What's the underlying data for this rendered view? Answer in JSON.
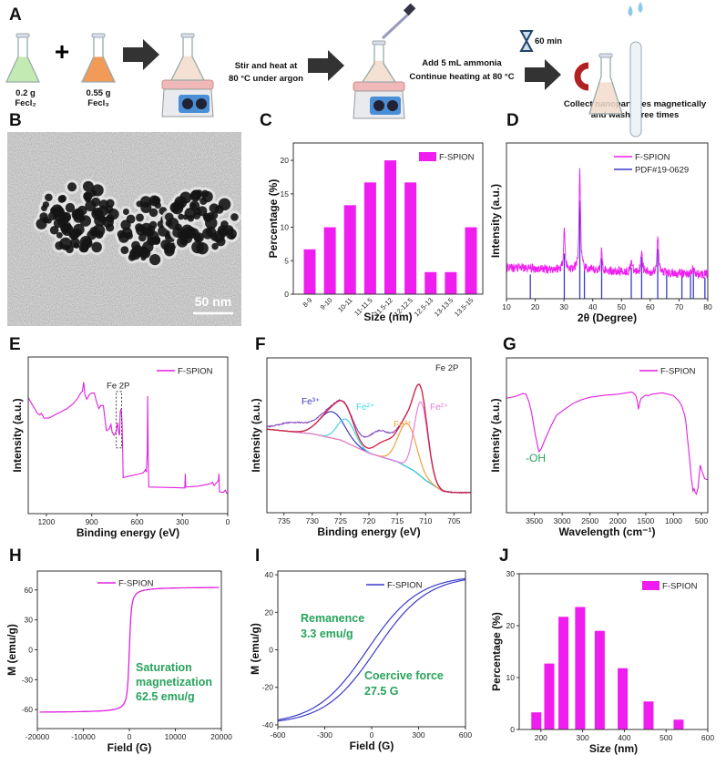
{
  "panel_labels": {
    "A": "A",
    "B": "B",
    "C": "C",
    "D": "D",
    "E": "E",
    "F": "F",
    "G": "G",
    "H": "H",
    "I": "I",
    "J": "J"
  },
  "scheme": {
    "reagent1_mass": "0.2 g",
    "reagent1_name": "Fecl₂",
    "plus": "+",
    "reagent2_mass": "0.55 g",
    "reagent2_name": "Fecl₃",
    "step1_line1": "Stir and heat at",
    "step1_line2": "80 °C under argon",
    "step2_line1": "Add 5 mL ammonia",
    "step2_line2": "Continue heating at 80 °C",
    "timer": "60 min",
    "step3_line1": "Collect nanoparticles magnetically",
    "step3_line2": "and wash three times"
  },
  "tem": {
    "scale_bar": "50 nm"
  },
  "colors": {
    "magenta": "#f01df0",
    "blue": "#3a3ac8",
    "annotation_green": "#27a35c"
  },
  "chart_data": [
    {
      "id": "C",
      "type": "bar",
      "categories": [
        "8-9",
        "9-10",
        "10-11",
        "11-11.5",
        "11.5-12",
        "12-12.5",
        "12.5-13",
        "13-13.5",
        "13.5-15"
      ],
      "values": [
        6.7,
        10,
        13.3,
        16.7,
        20,
        16.7,
        3.3,
        3.3,
        10
      ],
      "series_name": "F-SPION",
      "xlabel": "Size (nm)",
      "ylabel": "Percentage (%)",
      "ylim": [
        0,
        22.6
      ],
      "y_ticks": [
        0,
        5,
        10,
        15,
        20
      ],
      "legend": "top-right",
      "color": "#f01df0"
    },
    {
      "id": "D",
      "type": "line",
      "xlabel": "2θ (Degree)",
      "ylabel": "Intensity (a.u.)",
      "xlim": [
        10,
        80
      ],
      "ylim": [
        0,
        100
      ],
      "x_ticks": [
        10,
        20,
        30,
        40,
        50,
        60,
        70,
        80
      ],
      "legend": "top-right",
      "series": [
        {
          "name": "F-SPION",
          "color": "#f01df0",
          "background": [
            [
              10,
              20
            ],
            [
              80,
              15.5
            ]
          ],
          "peaks": [
            [
              30.1,
              45
            ],
            [
              35.5,
              83
            ],
            [
              43.1,
              31
            ],
            [
              53.4,
              25
            ],
            [
              57.0,
              32
            ],
            [
              62.6,
              42
            ],
            [
              74.8,
              20
            ]
          ]
        },
        {
          "name": "PDF#19-0629",
          "color": "#3a3ac8",
          "type": "stick",
          "peaks": [
            [
              18.3,
              15.5
            ],
            [
              30.1,
              29
            ],
            [
              35.5,
              63
            ],
            [
              37.1,
              18
            ],
            [
              43.1,
              26
            ],
            [
              53.4,
              20
            ],
            [
              57.0,
              27
            ],
            [
              62.6,
              32
            ],
            [
              65.7,
              15.5
            ],
            [
              71.0,
              14.5
            ],
            [
              74.0,
              17.5
            ],
            [
              75.0,
              20
            ],
            [
              79.0,
              13.6
            ]
          ]
        }
      ]
    },
    {
      "id": "E",
      "type": "line",
      "xlabel": "Binding energy (eV)",
      "ylabel": "Intensity (a.u.)",
      "xlim": [
        1320,
        0
      ],
      "ylim": [
        0,
        100
      ],
      "x_ticks": [
        1200,
        900,
        600,
        300,
        0
      ],
      "legend": "top-right",
      "annotation": "Fe 2P",
      "series": [
        {
          "name": "F-SPION",
          "color": "#e020e0",
          "points": [
            [
              1320,
              74
            ],
            [
              1290,
              69
            ],
            [
              1260,
              64
            ],
            [
              1244,
              63
            ],
            [
              1232,
              64
            ],
            [
              1215,
              61
            ],
            [
              1184,
              61
            ],
            [
              1144,
              63
            ],
            [
              1104,
              65
            ],
            [
              1064,
              67
            ],
            [
              1024,
              70
            ],
            [
              990,
              74
            ],
            [
              974,
              77
            ],
            [
              962,
              78
            ],
            [
              953,
              84
            ],
            [
              945,
              76
            ],
            [
              933,
              73
            ],
            [
              915,
              76
            ],
            [
              900,
              77
            ],
            [
              883,
              77
            ],
            [
              870,
              72
            ],
            [
              853,
              67
            ],
            [
              840,
              69
            ],
            [
              823,
              69
            ],
            [
              812,
              60
            ],
            [
              803,
              53
            ],
            [
              785,
              54
            ],
            [
              773,
              57
            ],
            [
              765,
              52
            ],
            [
              753,
              50
            ],
            [
              740,
              52
            ],
            [
              728,
              58
            ],
            [
              722,
              52
            ],
            [
              716,
              50
            ],
            [
              711,
              65
            ],
            [
              706,
              67
            ],
            [
              700,
              60
            ],
            [
              695,
              40
            ],
            [
              692,
              23
            ],
            [
              650,
              24
            ],
            [
              600,
              25
            ],
            [
              560,
              26
            ],
            [
              545,
              28
            ],
            [
              538,
              26.5
            ],
            [
              532,
              40
            ],
            [
              530,
              75
            ],
            [
              527,
              40
            ],
            [
              522,
              17
            ],
            [
              450,
              16.8
            ],
            [
              350,
              16.6
            ],
            [
              284,
              16.4
            ],
            [
              281,
              25.5
            ],
            [
              278,
              17
            ],
            [
              200,
              17.5
            ],
            [
              120,
              19
            ],
            [
              100,
              20
            ],
            [
              90,
              18
            ],
            [
              62,
              21
            ],
            [
              58,
              25.5
            ],
            [
              55,
              14
            ],
            [
              30,
              13.5
            ],
            [
              15,
              15
            ],
            [
              8,
              13
            ],
            [
              0,
              13
            ]
          ]
        }
      ]
    },
    {
      "id": "F",
      "type": "line",
      "xlabel": "Binding energy (eV)",
      "ylabel": "Intensity (a.u.)",
      "xlim": [
        738,
        702
      ],
      "ylim": [
        0,
        100
      ],
      "x_ticks": [
        735,
        730,
        725,
        720,
        715,
        710,
        705
      ],
      "title": "Fe 2P",
      "background": [
        [
          738,
          54
        ],
        [
          734,
          52.5
        ],
        [
          730,
          51
        ],
        [
          725,
          47
        ],
        [
          720,
          38.5
        ],
        [
          715,
          33
        ],
        [
          712,
          27
        ],
        [
          710,
          21
        ],
        [
          707,
          14
        ],
        [
          705,
          13
        ],
        [
          702,
          13
        ]
      ],
      "components": [
        {
          "label": "Fe³⁺",
          "center": 726.5,
          "height": 17,
          "sigma": 2.2,
          "color": "#3a3ac8"
        },
        {
          "label": "Fe²⁺",
          "center": 724.0,
          "height": 15,
          "sigma": 1.5,
          "color": "#3fd8e0"
        },
        {
          "label": "Fe³⁺",
          "center": 713.2,
          "height": 28,
          "sigma": 1.6,
          "color": "#f0a040"
        },
        {
          "label": "Fe²⁺",
          "center": 710.8,
          "height": 48,
          "sigma": 1.2,
          "color": "#e87de0"
        }
      ],
      "satellites": [
        {
          "center": 717.0,
          "height": 10,
          "sigma": 1.8
        }
      ],
      "raw_extra": [
        {
          "center": 733.0,
          "height": 6,
          "sigma": 3
        },
        {
          "center": 719.0,
          "height": 9,
          "sigma": 2
        }
      ],
      "colors": {
        "background": "#4ccc30",
        "envelope": "#d02040",
        "raw": "#8040c0"
      }
    },
    {
      "id": "G",
      "type": "line",
      "xlabel": "Wavelength (cm⁻¹)",
      "ylabel": "Intensity (a.u.)",
      "xlim": [
        4000,
        385
      ],
      "ylim": [
        0,
        100
      ],
      "x_ticks": [
        3500,
        3000,
        2500,
        2000,
        1500,
        1000,
        500
      ],
      "legend": "top-right",
      "annotation": "-OH",
      "series": [
        {
          "name": "F-SPION",
          "color": "#e020e0",
          "points": [
            [
              4000,
              74
            ],
            [
              3850,
              75
            ],
            [
              3700,
              77
            ],
            [
              3650,
              76.5
            ],
            [
              3600,
              72
            ],
            [
              3550,
              64.8
            ],
            [
              3480,
              50
            ],
            [
              3420,
              39.5
            ],
            [
              3380,
              41
            ],
            [
              3300,
              48
            ],
            [
              3200,
              56
            ],
            [
              3100,
              63
            ],
            [
              2950,
              67
            ],
            [
              2800,
              70.7
            ],
            [
              2650,
              73
            ],
            [
              2500,
              74.6
            ],
            [
              2250,
              75.8
            ],
            [
              2000,
              76.6
            ],
            [
              1750,
              78
            ],
            [
              1680,
              76
            ],
            [
              1650,
              72
            ],
            [
              1630,
              66.8
            ],
            [
              1600,
              72
            ],
            [
              1580,
              73.8
            ],
            [
              1500,
              76
            ],
            [
              1450,
              75.5
            ],
            [
              1400,
              76.5
            ],
            [
              1200,
              77.5
            ],
            [
              1000,
              75.6
            ],
            [
              900,
              72
            ],
            [
              850,
              68.8
            ],
            [
              800,
              63
            ],
            [
              780,
              59
            ],
            [
              750,
              48
            ],
            [
              720,
              38
            ],
            [
              680,
              22
            ],
            [
              650,
              14
            ],
            [
              630,
              15.5
            ],
            [
              610,
              13
            ],
            [
              590,
              12
            ],
            [
              560,
              16
            ],
            [
              540,
              24
            ],
            [
              520,
              30.7
            ],
            [
              500,
              28
            ],
            [
              480,
              25.8
            ],
            [
              440,
              22
            ],
            [
              400,
              21.5
            ],
            [
              385,
              21.5
            ]
          ]
        }
      ]
    },
    {
      "id": "H",
      "type": "line",
      "xlabel": "Field (G)",
      "ylabel": "M (emu/g)",
      "xlim": [
        -20000,
        20000
      ],
      "ylim": [
        -79,
        79
      ],
      "x_ticks": [
        -20000,
        -10000,
        0,
        10000,
        20000
      ],
      "y_ticks": [
        -60,
        -30,
        0,
        30,
        60
      ],
      "legend": "top",
      "series": [
        {
          "name": "F-SPION",
          "color": "#e020e0",
          "saturation_magnetization": 62.5
        }
      ],
      "annotation": [
        "Saturation",
        "magnetization",
        "62.5 emu/g"
      ]
    },
    {
      "id": "I",
      "type": "line",
      "xlabel": "Field (G)",
      "ylabel": "M (emu/g)",
      "xlim": [
        -600,
        600
      ],
      "ylim": [
        -41,
        42
      ],
      "x_ticks": [
        -600,
        -300,
        0,
        300,
        600
      ],
      "y_ticks": [
        -40,
        -20,
        0,
        20,
        40
      ],
      "legend": "top-right",
      "series": [
        {
          "name": "F-SPION",
          "color": "#3a3ac8",
          "remanence": 3.3,
          "coercivity": 27.5
        }
      ],
      "annotation_remanence": [
        "Remanence",
        "3.3 emu/g"
      ],
      "annotation_coercive": [
        "Coercive force",
        "27.5 G"
      ]
    },
    {
      "id": "J",
      "type": "bar",
      "xlabel": "Size (nm)",
      "ylabel": "Percentage (%)",
      "xlim": [
        148,
        600
      ],
      "ylim": [
        0,
        30
      ],
      "x_ticks": [
        200,
        300,
        400,
        500,
        600
      ],
      "y_ticks": [
        0,
        10,
        20,
        30
      ],
      "series_name": "F-SPION",
      "color": "#f01df0",
      "legend": "top-right",
      "x": [
        189,
        220,
        254,
        294,
        341,
        396,
        458,
        530
      ],
      "values": [
        3.3,
        12.7,
        21.7,
        23.6,
        19.0,
        11.8,
        5.4,
        1.9
      ]
    }
  ]
}
